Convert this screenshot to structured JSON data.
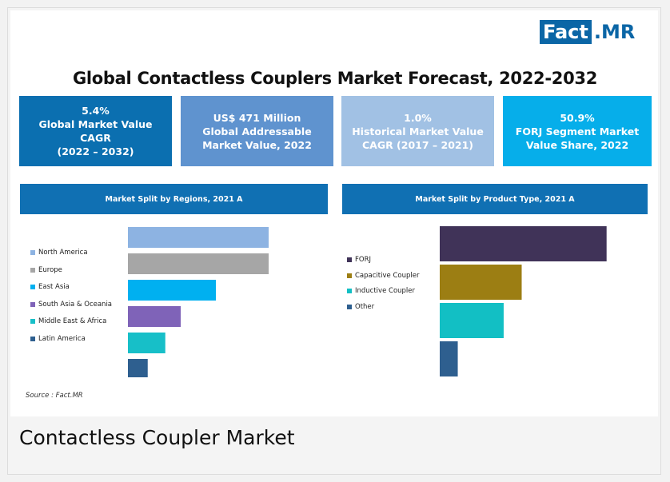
{
  "logo": {
    "part1": "Fact",
    "part2": ".MR"
  },
  "title": "Global Contactless Couplers Market Forecast, 2022-2032",
  "kpis": [
    {
      "text": "5.4%\nGlobal Market Value\nCAGR\n(2022 – 2032)"
    },
    {
      "text": "US$ 471 Million\nGlobal Addressable\nMarket Value, 2022"
    },
    {
      "text": "1.0%\nHistorical Market Value\nCAGR (2017 – 2021)"
    },
    {
      "text": "50.9%\nFORJ Segment Market\nValue Share, 2022"
    }
  ],
  "chart_data": [
    {
      "type": "bar",
      "title": "Market Split by Regions, 2021 A",
      "categories": [
        "North America",
        "Europe",
        "East Asia",
        "South Asia & Oceania",
        "Middle East & Africa",
        "Latin America"
      ],
      "values": [
        32,
        32,
        20,
        12,
        8.5,
        4.5
      ],
      "colors": [
        "#8db3e2",
        "#a6a6a6",
        "#00b0f0",
        "#7f63b8",
        "#17bfc8",
        "#2e5f8f"
      ]
    },
    {
      "type": "bar",
      "title": "Market Split by Product Type, 2021 A",
      "categories": [
        "FORJ",
        "Capacitive Coupler",
        "Inductive Coupler",
        "Other"
      ],
      "values": [
        50.9,
        25,
        19.5,
        5.5
      ],
      "colors": [
        "#403358",
        "#9c7e13",
        "#12bfc4",
        "#2e5f8f"
      ]
    }
  ],
  "source": "Source : Fact.MR",
  "caption": "Contactless Coupler Market"
}
